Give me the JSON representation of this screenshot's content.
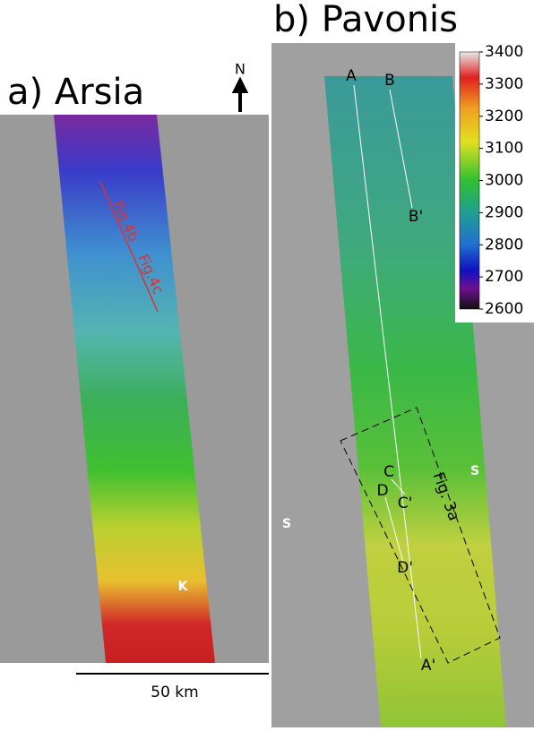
{
  "panels": [
    {
      "label": "a) Arsia",
      "north": "N",
      "scale": "50 km",
      "annotations": [
        "Fig.4b",
        "Fig.4c",
        "K"
      ]
    },
    {
      "label": "b) Pavonis",
      "profiles": [
        "A",
        "A'",
        "B",
        "B'",
        "C",
        "C'",
        "D",
        "D'"
      ],
      "annotations": [
        "Fig. 3a",
        "S",
        "S"
      ]
    }
  ],
  "colorbar": {
    "lim": [
      2600,
      3400
    ],
    "ticks": [
      2600,
      2700,
      2800,
      2900,
      3000,
      3100,
      3200,
      3300,
      3400
    ]
  }
}
